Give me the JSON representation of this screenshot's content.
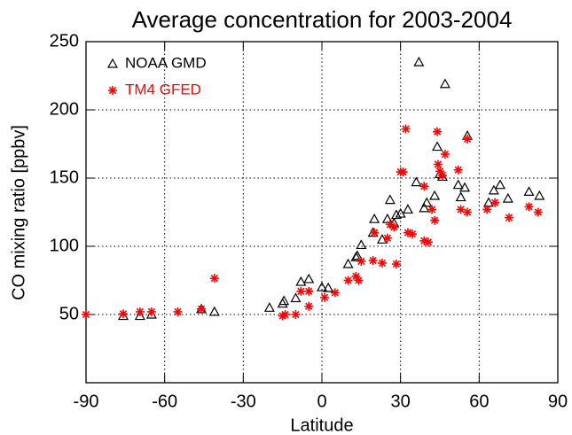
{
  "chart_data": {
    "type": "scatter",
    "title": "Average concentration for 2003-2004",
    "x_label": "Latitude",
    "y_label": "CO mixing ratio [ppbv]",
    "xlim": [
      -90,
      90
    ],
    "xticks": [
      -90,
      -60,
      -30,
      0,
      30,
      60,
      90
    ],
    "ylim": [
      0,
      250
    ],
    "yticks": [
      50,
      100,
      150,
      200,
      250
    ],
    "grid": true,
    "legend": "upper left",
    "series": [
      {
        "name": "NOAA GMD",
        "color": "#000000",
        "marker": "triangle",
        "x": [
          -75.8,
          -69.4,
          -65,
          -46,
          -41,
          -20,
          -15,
          -14.5,
          -10,
          -8,
          -5,
          0,
          2.4,
          10,
          13,
          13.5,
          15,
          19.5,
          20,
          23,
          25,
          26,
          27.5,
          28.4,
          30,
          32.8,
          36,
          37,
          39,
          40,
          43,
          44,
          45,
          46,
          47,
          52,
          53,
          54.5,
          55.5,
          63.6,
          65.6,
          68,
          71,
          79,
          83
        ],
        "values": [
          49,
          49,
          50,
          54,
          52,
          55,
          58,
          60,
          62,
          74,
          76,
          70,
          69.5,
          87,
          92,
          93,
          101,
          110,
          120,
          105,
          120,
          134,
          117,
          123,
          124,
          127,
          147,
          235,
          128,
          132,
          137,
          173,
          153,
          151,
          219,
          145,
          136,
          143,
          181,
          132,
          141,
          145,
          135,
          140,
          137
        ]
      },
      {
        "name": "TM4 GFED",
        "color": "#ff0000",
        "marker": "star",
        "x": [
          -90,
          -75.8,
          -69.4,
          -65,
          -55,
          -46,
          -41,
          -15,
          -14,
          -10,
          -8,
          -5,
          -5,
          1,
          5,
          10,
          13,
          14,
          15,
          19.5,
          20,
          23,
          25,
          26,
          27.5,
          28.4,
          30,
          31,
          32,
          32.8,
          34.5,
          39,
          39,
          40.6,
          42,
          43,
          44,
          44.3,
          45,
          46,
          47,
          52,
          53,
          55.5,
          55.5,
          63,
          66,
          71.4,
          79,
          82.5
        ],
        "values": [
          50,
          50.5,
          52,
          52,
          52,
          54,
          76.5,
          49,
          50,
          50,
          67,
          56,
          67,
          62.5,
          66,
          75,
          78,
          75,
          89,
          89.6,
          110,
          87.7,
          106,
          116,
          114,
          87,
          154.5,
          154.5,
          186,
          110,
          109,
          144,
          104,
          103,
          127,
          119,
          184,
          160,
          155,
          152,
          167.5,
          156,
          127,
          178.6,
          125,
          127,
          132,
          121,
          129,
          125
        ]
      }
    ]
  }
}
